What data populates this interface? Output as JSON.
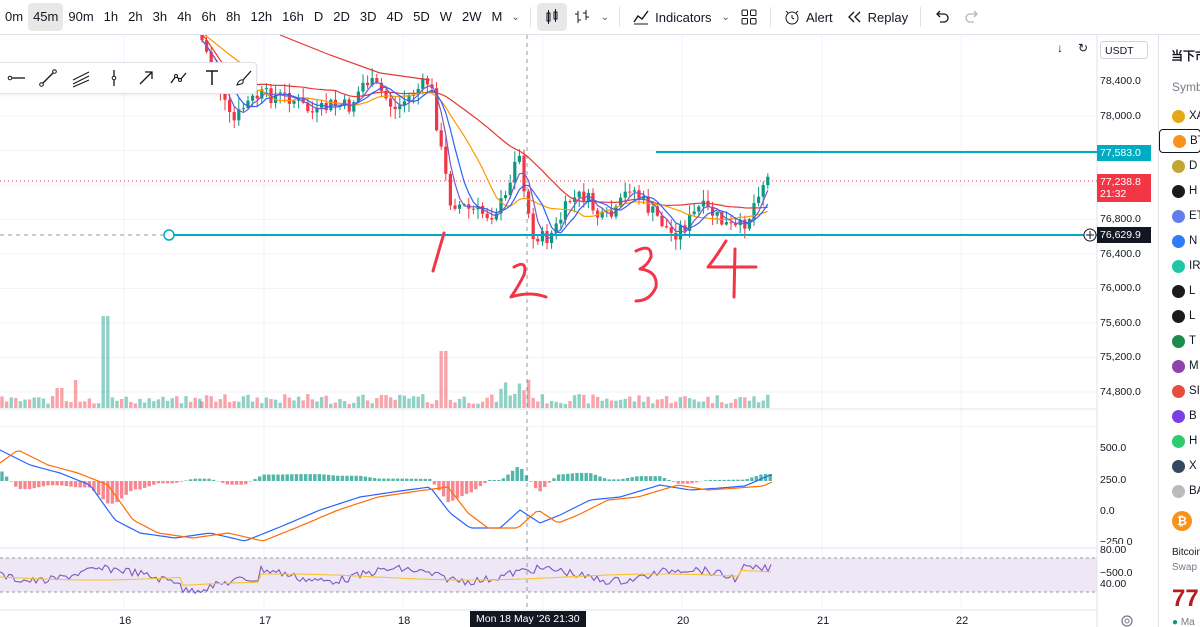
{
  "toolbar": {
    "timeframes": [
      "0m",
      "45m",
      "90m",
      "1h",
      "2h",
      "3h",
      "4h",
      "6h",
      "8h",
      "12h",
      "16h",
      "D",
      "2D",
      "3D",
      "4D",
      "5D",
      "W",
      "2W",
      "M"
    ],
    "active_timeframe": "45m",
    "indicators_label": "Indicators",
    "alert_label": "Alert",
    "replay_label": "Replay"
  },
  "chart_header": {
    "currency": "USDT"
  },
  "price_axis": {
    "labels": [
      "78,400.0",
      "78,000.0",
      "77,600.0",
      "77,200.0",
      "76,800.0",
      "76,400.0",
      "76,000.0",
      "75,600.0",
      "75,200.0",
      "74,800.0"
    ],
    "price_values": [
      78400,
      78000,
      77600,
      77200,
      76800,
      76400,
      76000,
      75600,
      75200,
      74800
    ]
  },
  "price_tags": {
    "alert_line": {
      "value": "77,583.0",
      "color": "#00acc1"
    },
    "last_price": {
      "value": "77,238.8",
      "countdown": "21:32",
      "color": "#f23645"
    },
    "cursor_price": {
      "value": "76,629.9"
    }
  },
  "macd_axis": {
    "labels": [
      "500.0",
      "250.0",
      "0.0",
      "−250.0",
      "−500.0"
    ]
  },
  "rsi_axis": {
    "labels": [
      "80.00",
      "40.00"
    ]
  },
  "time_axis": {
    "labels": [
      "16",
      "17",
      "18",
      "20",
      "21",
      "22"
    ],
    "cursor_label": "Mon 18 May '26   21:30"
  },
  "annotations": {
    "handwritten_touches": [
      "1",
      "2",
      "3",
      "4"
    ],
    "color": "#f23645"
  },
  "colors": {
    "up": "#089981",
    "down": "#f23645",
    "ma_red": "#e53935",
    "ma_orange": "#ff9800",
    "ma_blue": "#2962ff",
    "ma_purple": "#7e57c2",
    "hline": "#00acc1",
    "rsi_band": "#ede7f6"
  },
  "sidebar": {
    "title": "当下市",
    "symbol_header": "Symbo",
    "watchlist": [
      {
        "label": "XA",
        "icon_color": "#e6a817"
      },
      {
        "label": "BT",
        "icon_color": "#f7931a",
        "selected": true
      },
      {
        "label": "D",
        "icon_color": "#c2a633"
      },
      {
        "label": "H",
        "icon_color": "#1b1b1b"
      },
      {
        "label": "ET",
        "icon_color": "#627eea"
      },
      {
        "label": "N",
        "icon_color": "#2d7df6"
      },
      {
        "label": "IR",
        "icon_color": "#1ec8a5"
      },
      {
        "label": "L",
        "icon_color": "#1b1b1b"
      },
      {
        "label": "L",
        "icon_color": "#1b1b1b"
      },
      {
        "label": "T",
        "icon_color": "#1e8a4d"
      },
      {
        "label": "M",
        "icon_color": "#8e44ad"
      },
      {
        "label": "SI",
        "icon_color": "#e74c3c"
      },
      {
        "label": "B",
        "icon_color": "#7b3fe4"
      },
      {
        "label": "H",
        "icon_color": "#2ecc71"
      },
      {
        "label": "X",
        "icon_color": "#34495e"
      },
      {
        "label": "BA",
        "icon_color": "#bbbbbb"
      }
    ],
    "detail": {
      "name": "Bitcoin",
      "market": "Swap",
      "price": "77",
      "status": "Ma"
    }
  }
}
